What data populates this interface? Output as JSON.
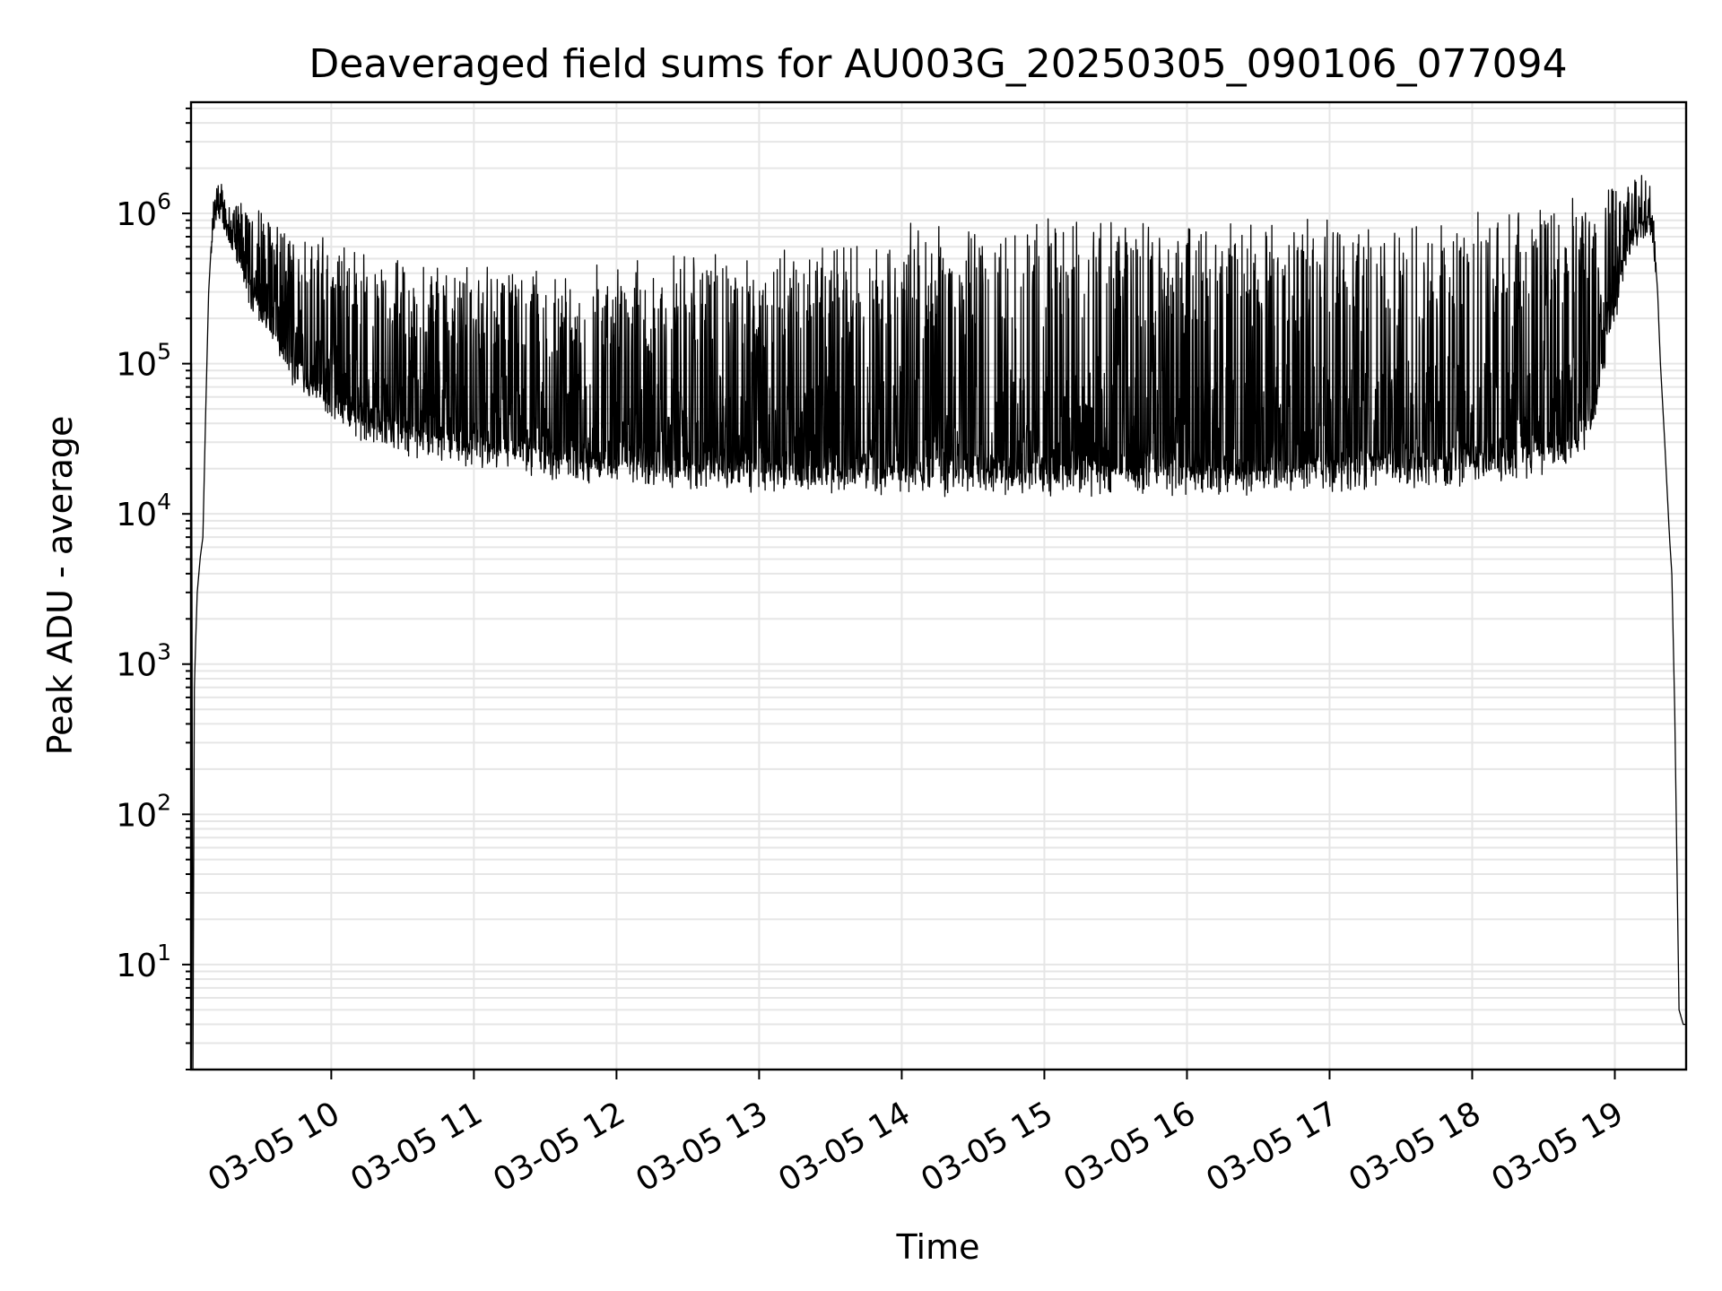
{
  "chart_data": {
    "type": "line",
    "title": "Deaveraged field sums for AU003G_20250305_090106_077094",
    "xlabel": "Time",
    "ylabel": "Peak ADU - average",
    "yscale": "log",
    "ylim": [
      2,
      5500000
    ],
    "xlim": [
      "03-05 09:01",
      "03-05 19:30"
    ],
    "grid": true,
    "legend": "none",
    "x_ticks": [
      "03-05 10",
      "03-05 11",
      "03-05 12",
      "03-05 13",
      "03-05 14",
      "03-05 15",
      "03-05 16",
      "03-05 17",
      "03-05 18",
      "03-05 19"
    ],
    "y_ticks": [
      {
        "value": 10,
        "base": "10",
        "exp": "1"
      },
      {
        "value": 100,
        "base": "10",
        "exp": "2"
      },
      {
        "value": 1000,
        "base": "10",
        "exp": "3"
      },
      {
        "value": 10000,
        "base": "10",
        "exp": "4"
      },
      {
        "value": 100000,
        "base": "10",
        "exp": "5"
      },
      {
        "value": 1000000,
        "base": "10",
        "exp": "6"
      }
    ],
    "series": [
      {
        "color": "#000000",
        "x_hours": [
          9.02,
          9.03,
          9.04,
          9.05,
          9.06,
          9.08,
          9.1,
          9.12,
          9.14,
          9.17,
          9.2,
          9.22,
          9.25,
          9.28,
          9.3,
          9.35,
          9.4,
          9.45,
          9.5,
          9.6,
          9.7,
          9.8,
          9.9,
          10.0,
          10.25,
          10.5,
          10.75,
          11.0,
          11.5,
          12.0,
          12.5,
          13.0,
          13.5,
          14.0,
          14.5,
          15.0,
          15.5,
          16.0,
          16.5,
          17.0,
          17.5,
          18.0,
          18.25,
          18.5,
          18.75,
          18.85,
          18.95,
          19.05,
          19.1,
          19.2,
          19.25,
          19.27,
          19.3,
          19.32,
          19.35,
          19.38,
          19.4,
          19.42,
          19.45,
          19.48,
          19.5
        ],
        "base": [
          100000,
          2,
          700,
          1500,
          3000,
          5000,
          7000,
          50000,
          300000,
          1000000,
          1300000,
          1200000,
          1000000,
          900000,
          800000,
          600000,
          400000,
          300000,
          250000,
          160000,
          110000,
          80000,
          65000,
          55000,
          40000,
          34000,
          30000,
          28000,
          23000,
          21000,
          20000,
          19000,
          18000,
          18000,
          18000,
          18000,
          18000,
          18000,
          18000,
          19000,
          20000,
          21000,
          22000,
          24000,
          30000,
          45000,
          150000,
          400000,
          700000,
          900000,
          1000000,
          800000,
          300000,
          100000,
          30000,
          8000,
          4000,
          500,
          5,
          4,
          4
        ],
        "peak": [
          100000,
          2,
          700,
          1500,
          3000,
          5000,
          7000,
          50000,
          300000,
          1200000,
          1600000,
          1700000,
          1600000,
          1500000,
          1450000,
          1400000,
          1350000,
          1300000,
          1250000,
          1100000,
          1000000,
          900000,
          800000,
          700000,
          580000,
          520000,
          480000,
          450000,
          450000,
          500000,
          580000,
          650000,
          760000,
          880000,
          950000,
          980000,
          1000000,
          1000000,
          1000000,
          1000000,
          1000000,
          1050000,
          1100000,
          1200000,
          1400000,
          1500000,
          1700000,
          1900000,
          1900000,
          1800000,
          1700000,
          1200000,
          300000,
          100000,
          30000,
          8000,
          4000,
          500,
          5,
          4,
          4
        ]
      }
    ]
  }
}
